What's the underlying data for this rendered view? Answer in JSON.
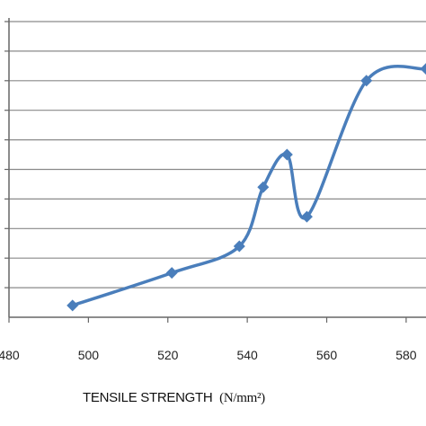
{
  "chart_data": {
    "type": "line",
    "title": "",
    "xlabel": "TENSILE STRENGTH",
    "xlabel_unit": "(N/mm²)",
    "ylabel": "",
    "xlim": [
      480,
      585
    ],
    "ylim": [
      0,
      10
    ],
    "x_ticks": [
      480,
      500,
      520,
      540,
      560,
      580
    ],
    "x_tick_labels": [
      "480",
      "500",
      "520",
      "540",
      "560",
      "580"
    ],
    "y_gridlines": [
      1,
      2,
      3,
      4,
      5,
      6,
      7,
      8,
      9,
      10
    ],
    "grid": true,
    "series": [
      {
        "color": "#4a7ebb",
        "marker": "diamond",
        "smooth": true,
        "points": [
          {
            "x": 496,
            "y": 0.4
          },
          {
            "x": 521,
            "y": 1.5
          },
          {
            "x": 538,
            "y": 2.4
          },
          {
            "x": 544,
            "y": 4.4
          },
          {
            "x": 550,
            "y": 5.5
          },
          {
            "x": 555,
            "y": 3.4
          },
          {
            "x": 570,
            "y": 8.0
          },
          {
            "x": 585,
            "y": 8.4
          }
        ]
      }
    ]
  }
}
